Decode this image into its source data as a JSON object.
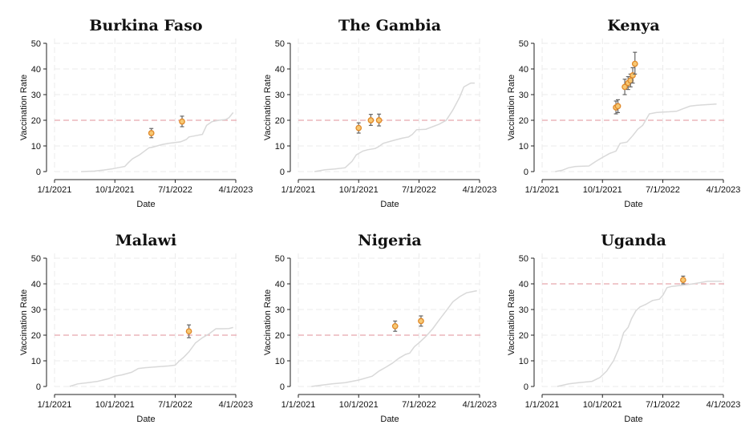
{
  "chart_data": [
    {
      "type": "line",
      "title": "Burkina Faso",
      "xlabel": "Date",
      "ylabel": "Vaccination Rate",
      "x_ticks": [
        "1/1/2021",
        "10/1/2021",
        "7/1/2022",
        "4/1/2023"
      ],
      "y_ticks": [
        "0",
        "10",
        "20",
        "30",
        "40",
        "50"
      ],
      "ylim": [
        0,
        50
      ],
      "xlim": [
        "1/1/2021",
        "4/1/2023"
      ],
      "grid": true,
      "reference_line": 20,
      "series": [
        {
          "type": "line",
          "x": [
            "2021-05-01",
            "2021-07-01",
            "2021-08-01",
            "2021-09-15",
            "2021-10-15",
            "2021-11-15",
            "2021-12-01",
            "2021-12-20",
            "2022-01-20",
            "2022-02-20",
            "2022-03-05",
            "2022-03-20",
            "2022-05-01",
            "2022-06-01",
            "2022-07-01",
            "2022-07-25",
            "2022-08-20",
            "2022-09-01",
            "2022-09-20",
            "2022-11-01",
            "2022-11-20",
            "2022-12-15",
            "2023-01-15",
            "2023-02-15",
            "2023-03-01",
            "2023-03-20"
          ],
          "y": [
            0.0,
            0.2,
            0.5,
            1.0,
            1.5,
            2.0,
            3.5,
            5.0,
            6.5,
            8.5,
            9.3,
            9.5,
            10.5,
            11.0,
            11.3,
            11.6,
            12.5,
            13.5,
            13.8,
            14.5,
            18.0,
            19.5,
            20.0,
            20.3,
            21.0,
            23.0
          ]
        },
        {
          "type": "point_ci",
          "x": [
            "2022-03-15",
            "2022-08-01"
          ],
          "y": [
            15.0,
            19.5
          ],
          "low": [
            13.2,
            17.5
          ],
          "high": [
            16.8,
            21.6
          ]
        }
      ]
    },
    {
      "type": "line",
      "title": "The Gambia",
      "xlabel": "Date",
      "ylabel": "Vaccination Rate",
      "x_ticks": [
        "1/1/2021",
        "10/1/2021",
        "7/1/2022",
        "4/1/2023"
      ],
      "y_ticks": [
        "0",
        "10",
        "20",
        "30",
        "40",
        "50"
      ],
      "ylim": [
        0,
        50
      ],
      "xlim": [
        "1/1/2021",
        "4/1/2023"
      ],
      "grid": true,
      "reference_line": 20,
      "series": [
        {
          "type": "line",
          "x": [
            "2021-03-15",
            "2021-05-01",
            "2021-06-15",
            "2021-08-01",
            "2021-09-01",
            "2021-09-20",
            "2021-10-10",
            "2021-10-20",
            "2021-11-10",
            "2021-12-15",
            "2022-01-01",
            "2022-01-20",
            "2022-03-01",
            "2022-04-15",
            "2022-05-15",
            "2022-06-01",
            "2022-06-20",
            "2022-08-01",
            "2022-10-01",
            "2022-11-01",
            "2022-12-01",
            "2023-01-01",
            "2023-01-20",
            "2023-02-20",
            "2023-03-01",
            "2023-03-10"
          ],
          "y": [
            0.0,
            0.7,
            1.0,
            1.5,
            4.0,
            6.5,
            7.5,
            8.0,
            8.5,
            9.0,
            9.8,
            11.0,
            12.0,
            13.0,
            13.5,
            14.5,
            16.3,
            16.5,
            18.5,
            20.0,
            24.0,
            29.0,
            33.0,
            34.5,
            34.5,
            34.5
          ]
        },
        {
          "type": "point_ci",
          "x": [
            "2021-10-01",
            "2021-11-25",
            "2022-01-01"
          ],
          "y": [
            17.0,
            20.0,
            20.0
          ],
          "low": [
            15.0,
            18.0,
            17.8
          ],
          "high": [
            19.0,
            22.3,
            22.4
          ]
        }
      ]
    },
    {
      "type": "line",
      "title": "Kenya",
      "xlabel": "Date",
      "ylabel": "Vaccination Rate",
      "x_ticks": [
        "1/1/2021",
        "10/1/2021",
        "7/1/2022",
        "4/1/2023"
      ],
      "y_ticks": [
        "0",
        "10",
        "20",
        "30",
        "40",
        "50"
      ],
      "ylim": [
        0,
        50
      ],
      "xlim": [
        "1/1/2021",
        "4/1/2023"
      ],
      "grid": true,
      "reference_line": 20,
      "series": [
        {
          "type": "line",
          "x": [
            "2021-03-01",
            "2021-04-01",
            "2021-05-01",
            "2021-06-01",
            "2021-08-01",
            "2021-09-01",
            "2021-10-01",
            "2021-11-01",
            "2021-12-01",
            "2021-12-20",
            "2022-01-20",
            "2022-02-15",
            "2022-03-10",
            "2022-04-01",
            "2022-05-01",
            "2022-06-01",
            "2022-07-01",
            "2022-08-01",
            "2022-09-01",
            "2022-10-01",
            "2022-11-01",
            "2022-12-01",
            "2023-01-01",
            "2023-02-01",
            "2023-03-01"
          ],
          "y": [
            0.0,
            0.5,
            1.5,
            2.0,
            2.2,
            4.0,
            5.5,
            7.0,
            8.0,
            11.0,
            11.5,
            14.0,
            16.5,
            18.0,
            22.5,
            23.0,
            23.2,
            23.3,
            23.5,
            24.5,
            25.5,
            25.8,
            26.0,
            26.2,
            26.3
          ]
        },
        {
          "type": "point_ci",
          "x": [
            "2021-12-01",
            "2021-12-10",
            "2022-01-10",
            "2022-01-25",
            "2022-02-05",
            "2022-02-15",
            "2022-02-25"
          ],
          "y": [
            25.0,
            25.5,
            33.0,
            34.5,
            35.5,
            37.5,
            42.0
          ],
          "low": [
            22.5,
            23.0,
            30.0,
            32.0,
            33.0,
            34.5,
            38.0
          ],
          "high": [
            27.5,
            28.0,
            36.0,
            37.0,
            38.0,
            40.5,
            46.5
          ]
        }
      ]
    },
    {
      "type": "line",
      "title": "Malawi",
      "xlabel": "Date",
      "ylabel": "Vaccination Rate",
      "x_ticks": [
        "1/1/2021",
        "10/1/2021",
        "7/1/2022",
        "4/1/2023"
      ],
      "y_ticks": [
        "0",
        "10",
        "20",
        "30",
        "40",
        "50"
      ],
      "ylim": [
        0,
        50
      ],
      "xlim": [
        "1/1/2021",
        "4/1/2023"
      ],
      "grid": true,
      "reference_line": 20,
      "series": [
        {
          "type": "line",
          "x": [
            "2021-03-10",
            "2021-04-15",
            "2021-06-01",
            "2021-07-15",
            "2021-09-01",
            "2021-10-01",
            "2021-11-01",
            "2021-12-15",
            "2022-01-15",
            "2022-02-15",
            "2022-03-15",
            "2022-05-01",
            "2022-06-01",
            "2022-07-01",
            "2022-07-20",
            "2022-08-10",
            "2022-09-01",
            "2022-10-01",
            "2022-11-01",
            "2022-12-01",
            "2023-01-01",
            "2023-02-01",
            "2023-03-01",
            "2023-03-20"
          ],
          "y": [
            0.0,
            1.0,
            1.5,
            2.0,
            3.0,
            4.0,
            4.5,
            5.5,
            7.0,
            7.3,
            7.5,
            7.8,
            8.0,
            8.3,
            10.0,
            11.5,
            13.5,
            17.0,
            19.0,
            20.5,
            22.5,
            22.5,
            22.6,
            23.0
          ]
        },
        {
          "type": "point_ci",
          "x": [
            "2022-09-01"
          ],
          "y": [
            21.5
          ],
          "low": [
            19.0
          ],
          "high": [
            24.0
          ]
        }
      ]
    },
    {
      "type": "line",
      "title": "Nigeria",
      "xlabel": "Date",
      "ylabel": "Vaccination Rate",
      "x_ticks": [
        "1/1/2021",
        "10/1/2021",
        "7/1/2022",
        "4/1/2023"
      ],
      "y_ticks": [
        "0",
        "10",
        "20",
        "30",
        "40",
        "50"
      ],
      "ylim": [
        0,
        50
      ],
      "xlim": [
        "1/1/2021",
        "4/1/2023"
      ],
      "grid": true,
      "reference_line": 20,
      "series": [
        {
          "type": "line",
          "x": [
            "2021-03-01",
            "2021-04-15",
            "2021-06-01",
            "2021-08-01",
            "2021-10-01",
            "2021-12-01",
            "2022-01-01",
            "2022-02-01",
            "2022-03-01",
            "2022-04-01",
            "2022-05-01",
            "2022-05-20",
            "2022-06-10",
            "2022-07-01",
            "2022-08-01",
            "2022-09-01",
            "2022-10-01",
            "2022-11-01",
            "2022-12-01",
            "2023-01-01",
            "2023-02-01",
            "2023-03-01",
            "2023-03-20"
          ],
          "y": [
            0.0,
            0.5,
            1.0,
            1.5,
            2.5,
            4.0,
            6.0,
            7.5,
            9.0,
            11.0,
            12.5,
            13.0,
            15.5,
            17.0,
            19.5,
            22.5,
            26.0,
            29.5,
            33.0,
            35.0,
            36.5,
            37.0,
            37.3
          ]
        },
        {
          "type": "point_ci",
          "x": [
            "2022-03-15",
            "2022-07-10"
          ],
          "y": [
            23.5,
            25.5
          ],
          "low": [
            21.5,
            23.5
          ],
          "high": [
            25.5,
            27.5
          ]
        }
      ]
    },
    {
      "type": "line",
      "title": "Uganda",
      "xlabel": "Date",
      "ylabel": "Vaccination Rate",
      "x_ticks": [
        "1/1/2021",
        "10/1/2021",
        "7/1/2022",
        "4/1/2023"
      ],
      "y_ticks": [
        "0",
        "10",
        "20",
        "30",
        "40",
        "50"
      ],
      "ylim": [
        0,
        50
      ],
      "xlim": [
        "1/1/2021",
        "4/1/2023"
      ],
      "grid": true,
      "reference_line": 40,
      "series": [
        {
          "type": "line",
          "x": [
            "2021-03-10",
            "2021-05-01",
            "2021-06-15",
            "2021-08-15",
            "2021-09-20",
            "2021-10-20",
            "2021-11-20",
            "2021-12-15",
            "2022-01-05",
            "2022-01-25",
            "2022-02-10",
            "2022-03-01",
            "2022-03-20",
            "2022-04-15",
            "2022-05-15",
            "2022-06-15",
            "2022-07-01",
            "2022-07-20",
            "2022-08-10",
            "2022-10-01",
            "2022-11-15",
            "2022-12-20",
            "2023-01-20",
            "2023-03-01",
            "2023-03-25"
          ],
          "y": [
            0.0,
            1.0,
            1.5,
            2.0,
            3.5,
            6.0,
            10.0,
            15.0,
            21.0,
            23.0,
            26.5,
            29.5,
            31.0,
            32.0,
            33.5,
            34.0,
            35.5,
            38.5,
            39.0,
            39.5,
            40.0,
            40.5,
            41.0,
            41.0,
            41.0
          ]
        },
        {
          "type": "point_ci",
          "x": [
            "2022-10-01"
          ],
          "y": [
            41.5
          ],
          "low": [
            40.0
          ],
          "high": [
            43.0
          ]
        }
      ]
    }
  ]
}
